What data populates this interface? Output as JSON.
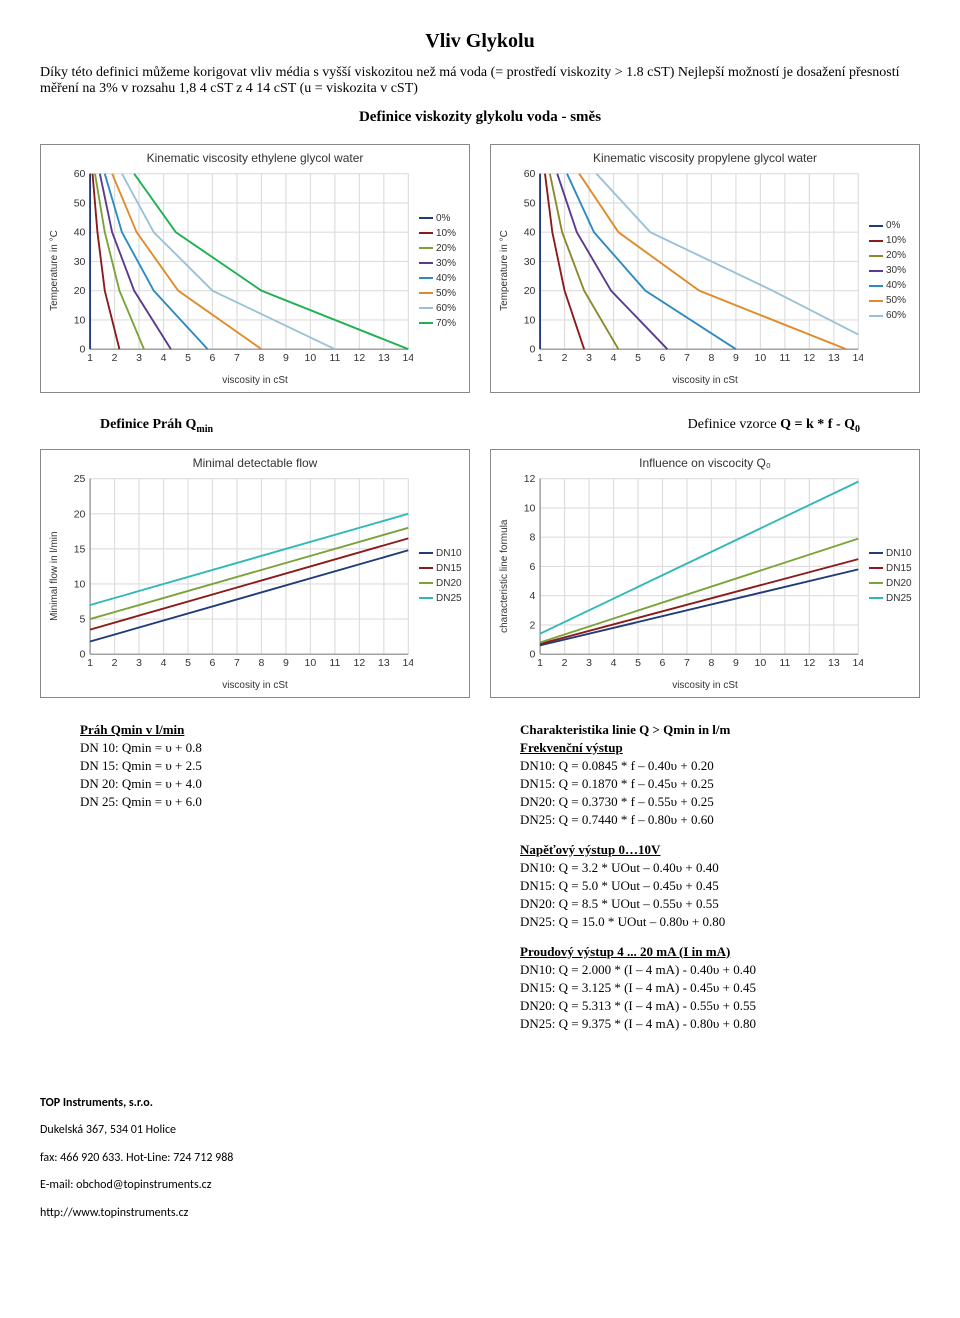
{
  "title": "Vliv Glykolu",
  "intro": "Díky této definici můžeme korigovat vliv média s vyšší viskozitou než má voda (= prostředí viskozity > 1.8 cST) Nejlepší možností je dosažení přesností měření na 3% v rozsahu 1,8 4 cST z 4 14 cST (u = viskozita v cST)",
  "subheading": "Definice viskozity glykolu voda - směs",
  "def_left": "Definice Práh Q",
  "def_left_sub": "min",
  "def_right_label": "Definice vzorce ",
  "def_right_formula": "Q = k * f - Q",
  "def_right_sub": "0",
  "chart1": {
    "title": "Kinematic viscosity ethylene glycol water",
    "ylabel": "Temperature in °C",
    "xlabel": "viscosity in cSt",
    "xlim": [
      1,
      14
    ],
    "ylim": [
      0,
      60
    ],
    "ytick_step": 10,
    "grid_color": "#dddddd",
    "series": [
      {
        "name": "0%",
        "color": "#1f3b7a",
        "pts": [
          [
            1,
            60
          ],
          [
            1,
            0
          ]
        ]
      },
      {
        "name": "10%",
        "color": "#8b1a1a",
        "pts": [
          [
            1.1,
            60
          ],
          [
            1.3,
            40
          ],
          [
            1.6,
            20
          ],
          [
            2.2,
            0
          ]
        ]
      },
      {
        "name": "20%",
        "color": "#7aa33a",
        "pts": [
          [
            1.2,
            60
          ],
          [
            1.6,
            40
          ],
          [
            2.2,
            20
          ],
          [
            3.2,
            0
          ]
        ]
      },
      {
        "name": "30%",
        "color": "#5b3a8e",
        "pts": [
          [
            1.4,
            60
          ],
          [
            1.9,
            40
          ],
          [
            2.8,
            20
          ],
          [
            4.3,
            0
          ]
        ]
      },
      {
        "name": "40%",
        "color": "#2e8bc0",
        "pts": [
          [
            1.6,
            60
          ],
          [
            2.3,
            40
          ],
          [
            3.6,
            20
          ],
          [
            5.8,
            0
          ]
        ]
      },
      {
        "name": "50%",
        "color": "#e08a2a",
        "pts": [
          [
            1.9,
            60
          ],
          [
            2.9,
            40
          ],
          [
            4.6,
            20
          ],
          [
            8.0,
            0
          ]
        ]
      },
      {
        "name": "60%",
        "color": "#9ac1d9",
        "pts": [
          [
            2.3,
            60
          ],
          [
            3.6,
            40
          ],
          [
            6.0,
            20
          ],
          [
            11.0,
            0
          ]
        ]
      },
      {
        "name": "70%",
        "color": "#1fb050",
        "pts": [
          [
            2.8,
            60
          ],
          [
            4.5,
            40
          ],
          [
            8.0,
            20
          ],
          [
            14.0,
            0
          ]
        ]
      }
    ]
  },
  "chart2": {
    "title": "Kinematic viscosity propylene glycol water",
    "ylabel": "Temperature in °C",
    "xlabel": "viscosity in cSt",
    "xlim": [
      1,
      14
    ],
    "ylim": [
      0,
      60
    ],
    "ytick_step": 10,
    "grid_color": "#dddddd",
    "series": [
      {
        "name": "0%",
        "color": "#1f3b7a",
        "pts": [
          [
            1,
            60
          ],
          [
            1,
            0
          ]
        ]
      },
      {
        "name": "10%",
        "color": "#8b1a1a",
        "pts": [
          [
            1.2,
            60
          ],
          [
            1.5,
            40
          ],
          [
            2.0,
            20
          ],
          [
            2.8,
            0
          ]
        ]
      },
      {
        "name": "20%",
        "color": "#8a8a2a",
        "pts": [
          [
            1.4,
            60
          ],
          [
            1.9,
            40
          ],
          [
            2.8,
            20
          ],
          [
            4.2,
            0
          ]
        ]
      },
      {
        "name": "30%",
        "color": "#5b3a8e",
        "pts": [
          [
            1.7,
            60
          ],
          [
            2.5,
            40
          ],
          [
            3.9,
            20
          ],
          [
            6.2,
            0
          ]
        ]
      },
      {
        "name": "40%",
        "color": "#2e8bc0",
        "pts": [
          [
            2.1,
            60
          ],
          [
            3.2,
            40
          ],
          [
            5.3,
            20
          ],
          [
            9.0,
            0
          ]
        ]
      },
      {
        "name": "50%",
        "color": "#e08a2a",
        "pts": [
          [
            2.6,
            60
          ],
          [
            4.2,
            40
          ],
          [
            7.5,
            20
          ],
          [
            13.5,
            0
          ]
        ]
      },
      {
        "name": "60%",
        "color": "#9ac1d9",
        "pts": [
          [
            3.3,
            60
          ],
          [
            5.5,
            40
          ],
          [
            10.5,
            20
          ],
          [
            14.0,
            5
          ]
        ]
      }
    ]
  },
  "chart3": {
    "title": "Minimal detectable flow",
    "ylabel": "Minimal flow in l/min",
    "xlabel": "viscosity in cSt",
    "xlim": [
      1,
      14
    ],
    "ylim": [
      0,
      25
    ],
    "ytick_step": 5,
    "grid_color": "#dddddd",
    "series": [
      {
        "name": "DN10",
        "color": "#1f3b7a",
        "pts": [
          [
            1,
            1.8
          ],
          [
            14,
            14.8
          ]
        ]
      },
      {
        "name": "DN15",
        "color": "#8b1a1a",
        "pts": [
          [
            1,
            3.5
          ],
          [
            14,
            16.5
          ]
        ]
      },
      {
        "name": "DN20",
        "color": "#7aa33a",
        "pts": [
          [
            1,
            5.0
          ],
          [
            14,
            18.0
          ]
        ]
      },
      {
        "name": "DN25",
        "color": "#2eb8b8",
        "pts": [
          [
            1,
            7.0
          ],
          [
            14,
            20.0
          ]
        ]
      }
    ]
  },
  "chart4": {
    "title": "Influence on viscocity Q₀",
    "ylabel": "characteristic line formula",
    "xlabel": "viscosity in cSt",
    "xlim": [
      1,
      14
    ],
    "ylim": [
      0,
      12
    ],
    "ytick_step": 2,
    "grid_color": "#dddddd",
    "series": [
      {
        "name": "DN10",
        "color": "#1f3b7a",
        "pts": [
          [
            1,
            0.6
          ],
          [
            14,
            5.8
          ]
        ]
      },
      {
        "name": "DN15",
        "color": "#8b1a1a",
        "pts": [
          [
            1,
            0.7
          ],
          [
            14,
            6.5
          ]
        ]
      },
      {
        "name": "DN20",
        "color": "#7aa33a",
        "pts": [
          [
            1,
            0.8
          ],
          [
            14,
            7.9
          ]
        ]
      },
      {
        "name": "DN25",
        "color": "#2eb8b8",
        "pts": [
          [
            1,
            1.4
          ],
          [
            14,
            11.8
          ]
        ]
      }
    ]
  },
  "left_col": {
    "heading": "Práh Qmin v l/min",
    "lines": [
      "DN 10: Qmin = υ + 0.8",
      "DN 15: Qmin = υ + 2.5",
      "DN 20: Qmin = υ + 4.0",
      "DN 25: Qmin = υ + 6.0"
    ]
  },
  "right_col": {
    "heading": "Charakteristika linie Q > Qmin in l/m",
    "blocks": [
      {
        "sub": "Frekvenční výstup",
        "lines": [
          "DN10: Q = 0.0845 * f – 0.40υ + 0.20",
          "DN15: Q = 0.1870 * f – 0.45υ + 0.25",
          "DN20: Q = 0.3730 * f – 0.55υ + 0.25",
          "DN25: Q = 0.7440 * f – 0.80υ + 0.60"
        ]
      },
      {
        "sub": "Napěťový výstup 0…10V",
        "lines": [
          "DN10: Q = 3.2 * UOut – 0.40υ + 0.40",
          "DN15: Q = 5.0 * UOut – 0.45υ + 0.45",
          "DN20: Q = 8.5 * UOut – 0.55υ + 0.55",
          "DN25: Q = 15.0 * UOut – 0.80υ + 0.80"
        ]
      },
      {
        "sub": "Proudový výstup 4 ... 20 mA (I in mA)",
        "lines": [
          "DN10: Q = 2.000 * (I – 4 mA) - 0.40υ + 0.40",
          "DN15: Q = 3.125 * (I – 4 mA) - 0.45υ + 0.45",
          "DN20: Q = 5.313 * (I – 4 mA) - 0.55υ + 0.55",
          "DN25: Q = 9.375 * (I – 4 mA) - 0.80υ + 0.80"
        ]
      }
    ]
  },
  "footer": {
    "company": "TOP Instruments, s.r.o.",
    "lines": [
      "Dukelská 367, 534 01 Holice",
      "fax: 466 920 633. Hot-Line: 724 712 988",
      "E-mail: obchod@topinstruments.cz",
      "http://www.topinstruments.cz"
    ]
  }
}
